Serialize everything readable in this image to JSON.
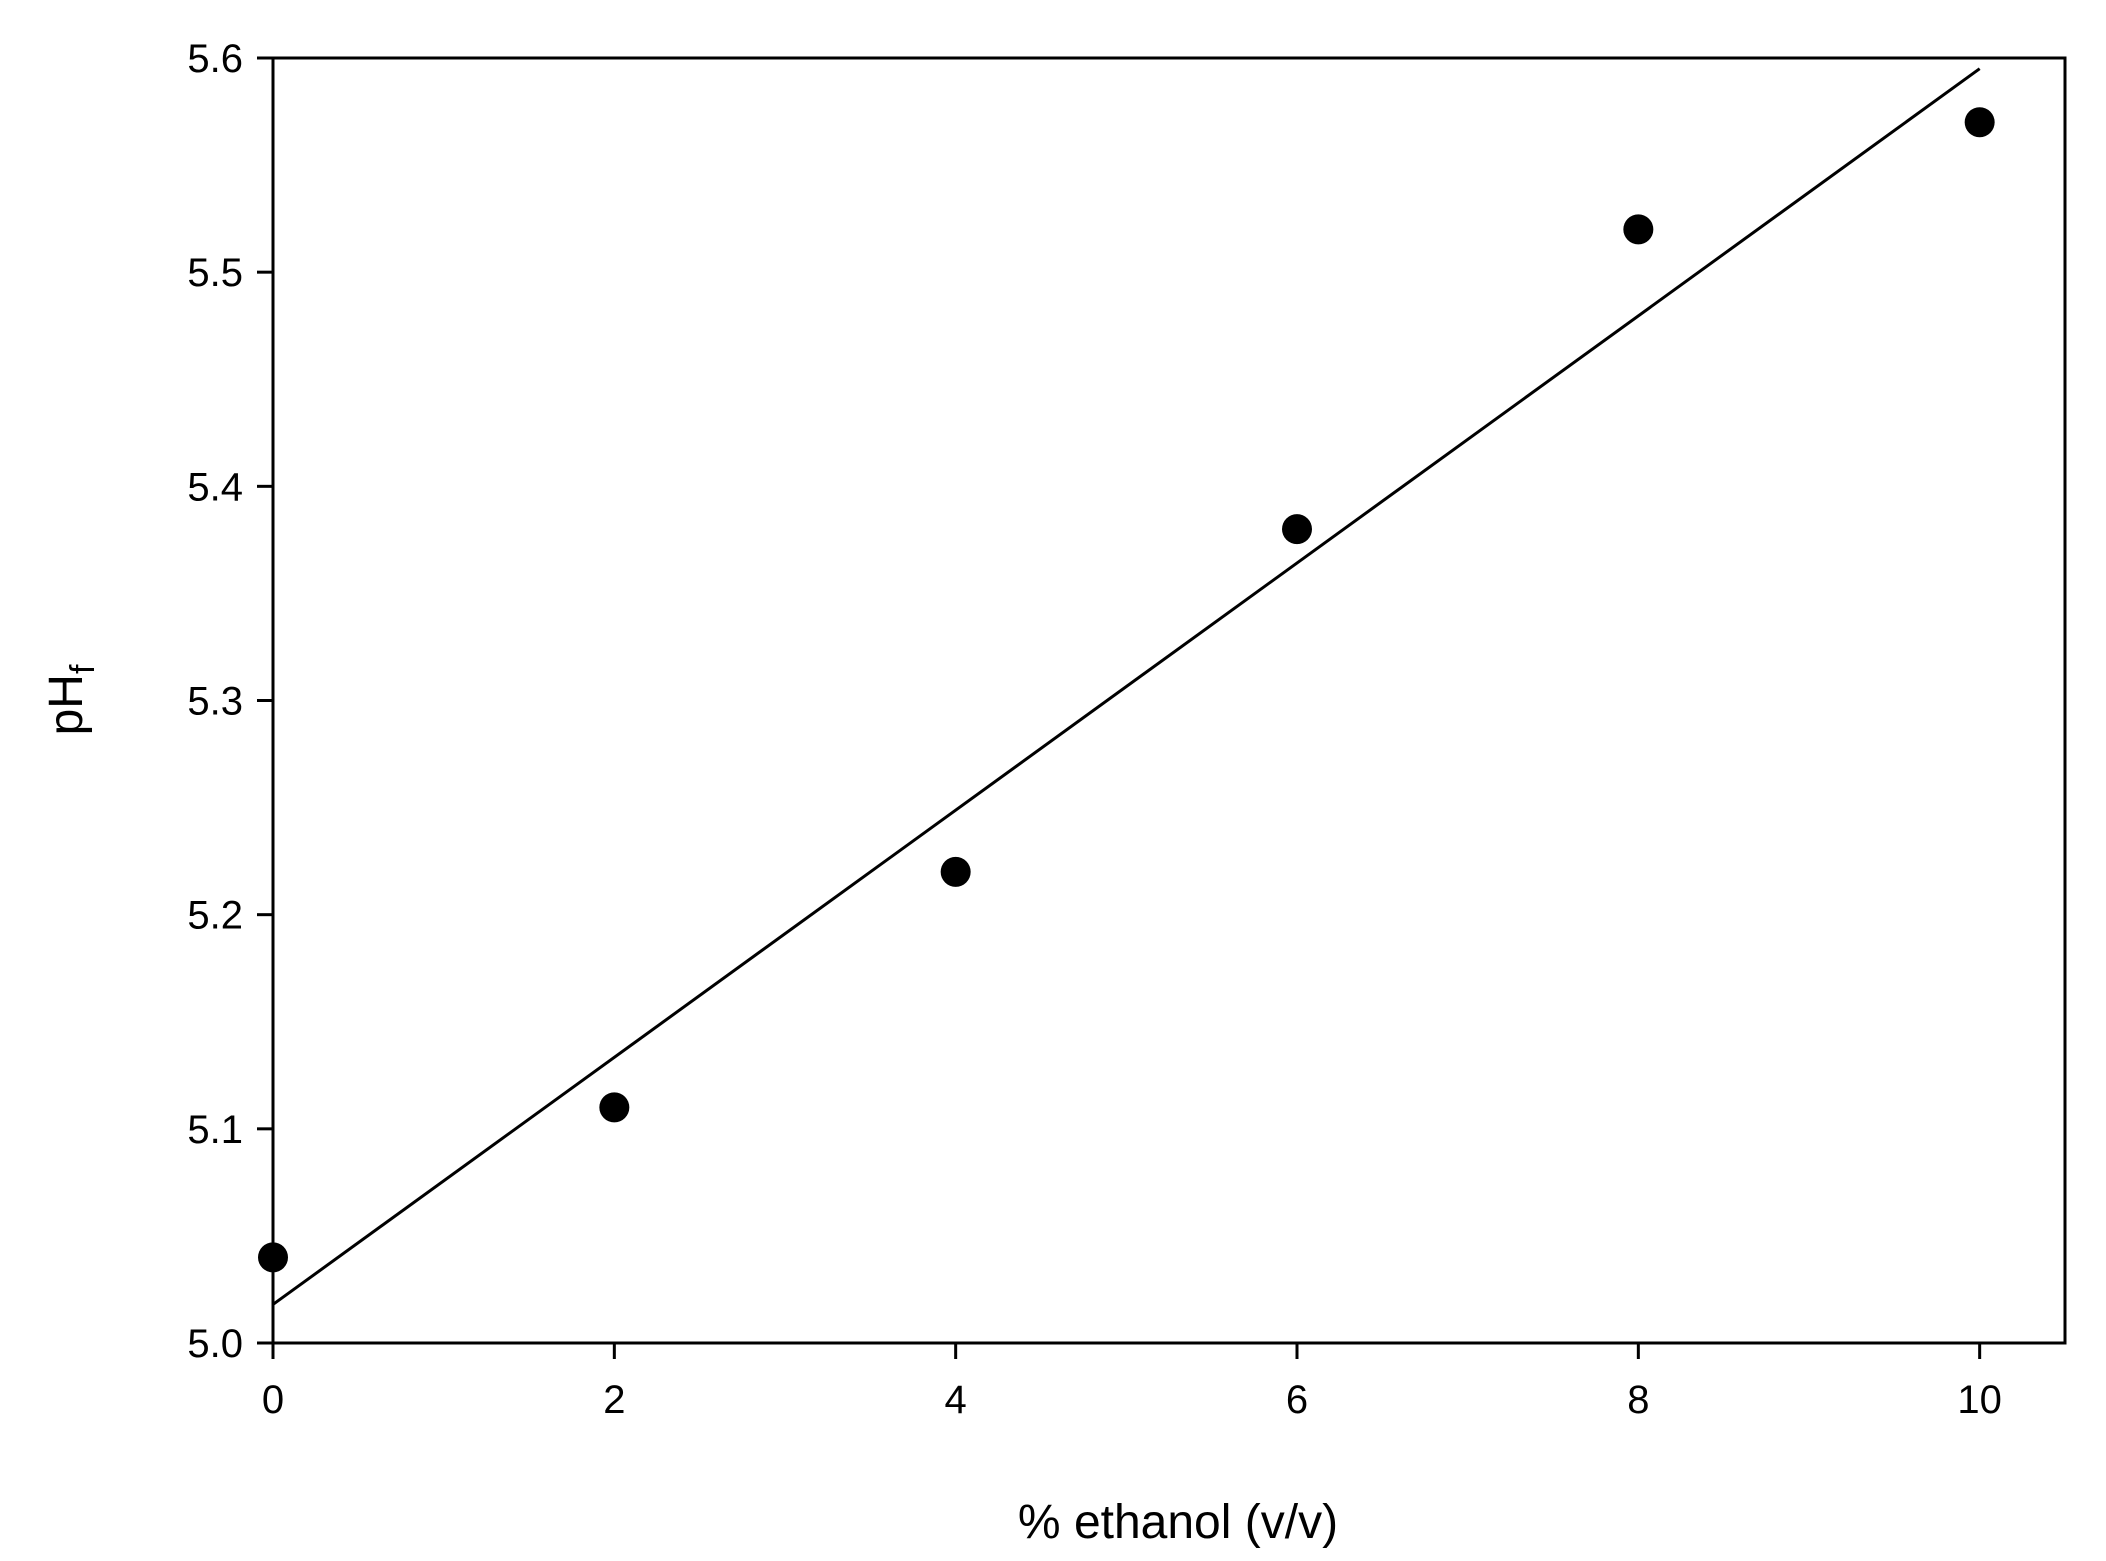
{
  "chart_data": {
    "type": "scatter",
    "title": "",
    "xlabel": "% ethanol (v/v)",
    "ylabel": "pH",
    "ylabel_subscript": "f",
    "xlim": [
      0,
      10.5
    ],
    "ylim": [
      5.0,
      5.6
    ],
    "xticks": [
      0,
      2,
      4,
      6,
      8,
      10
    ],
    "yticks": [
      5.0,
      5.1,
      5.2,
      5.3,
      5.4,
      5.5,
      5.6
    ],
    "xtick_labels": [
      "0",
      "2",
      "4",
      "6",
      "8",
      "10"
    ],
    "ytick_labels": [
      "5.0",
      "5.1",
      "5.2",
      "5.3",
      "5.4",
      "5.5",
      "5.6"
    ],
    "grid": false,
    "legend": "none",
    "series": [
      {
        "x": [
          0,
          2,
          4,
          6,
          8,
          10
        ],
        "y": [
          5.04,
          5.11,
          5.22,
          5.38,
          5.52,
          5.57
        ],
        "marker": "filled-circle",
        "color": "#000000"
      }
    ],
    "trendline": {
      "x": [
        0,
        10
      ],
      "y": [
        5.018,
        5.595
      ],
      "color": "#000000"
    }
  }
}
